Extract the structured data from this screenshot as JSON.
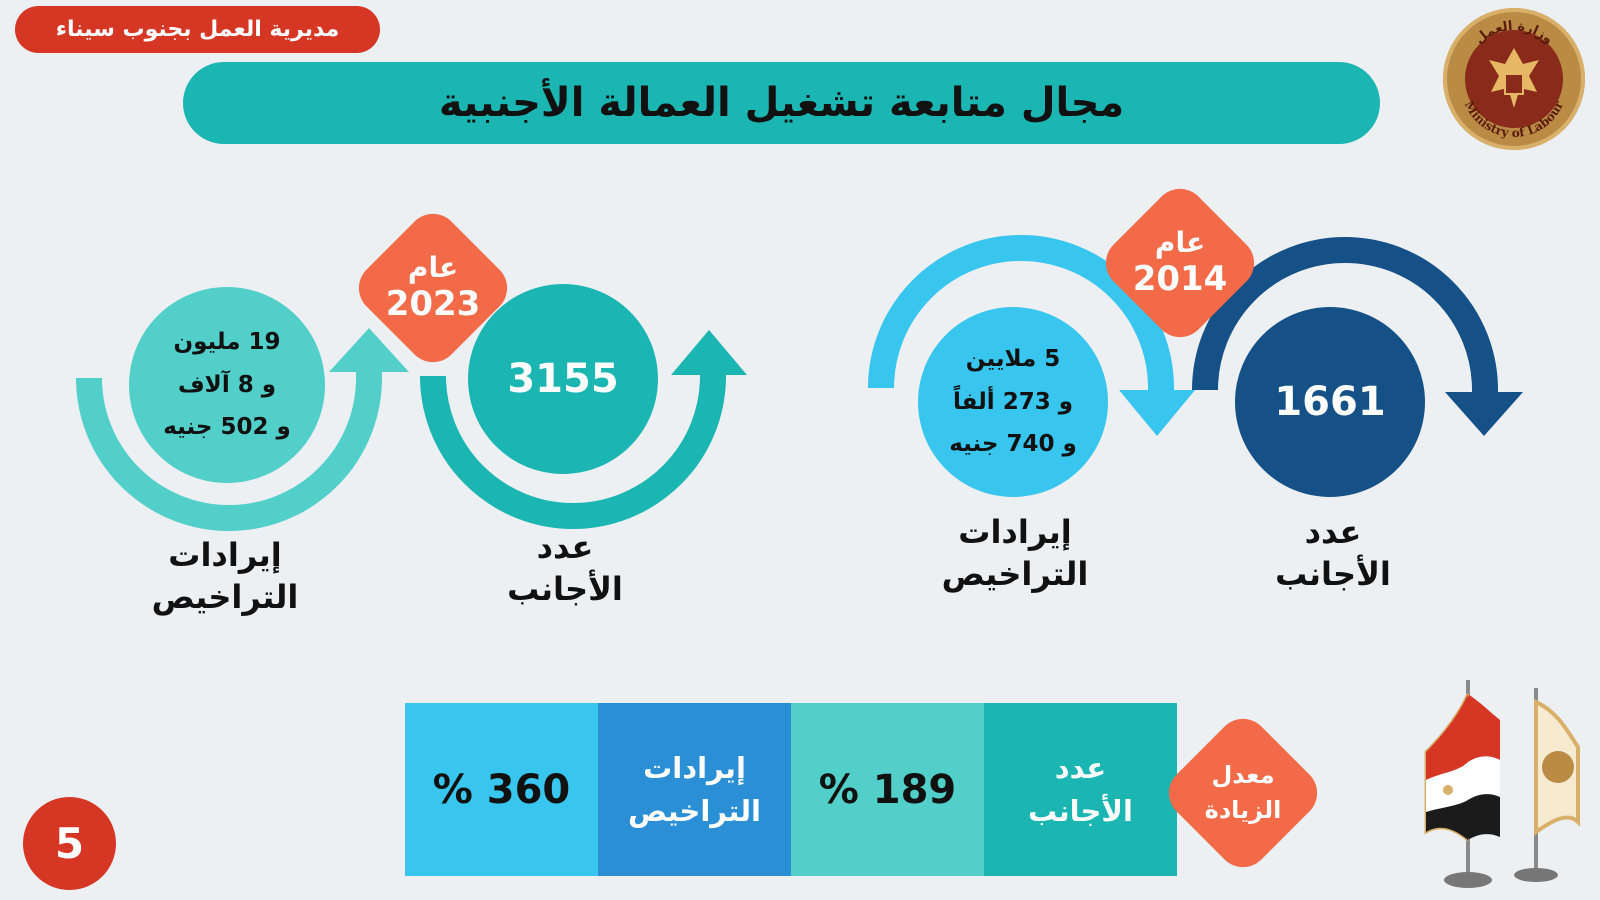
{
  "header": {
    "directorate": "مديرية العمل بجنوب سيناء",
    "title": "مجال متابعة تشغيل العمالة الأجنبية",
    "logo_text_ar": "وزارة العمل",
    "logo_text_en": "Ministry of Labour"
  },
  "year_2014": {
    "year_word": "عام",
    "year": "2014",
    "foreigners_count": "1661",
    "foreigners_label_1": "عدد",
    "foreigners_label_2": "الأجانب",
    "revenue_lines": [
      "5 ملايين",
      "و 273 ألفاً",
      "و  740 جنيه"
    ],
    "revenue_label_1": "إيرادات",
    "revenue_label_2": "التراخيص"
  },
  "year_2023": {
    "year_word": "عام",
    "year": "2023",
    "foreigners_count": "3155",
    "foreigners_label_1": "عدد",
    "foreigners_label_2": "الأجانب",
    "revenue_lines": [
      "19  مليون",
      "و 8 آلاف",
      "و 502 جنيه"
    ],
    "revenue_label_1": "إيرادات",
    "revenue_label_2": "التراخيص"
  },
  "increase": {
    "label_1": "معدل",
    "label_2": "الزيادة",
    "foreigners_label_1": "عدد",
    "foreigners_label_2": "الأجانب",
    "foreigners_rate": "189 %",
    "revenue_label_1": "إيرادات",
    "revenue_label_2": "التراخيص",
    "revenue_rate": "360 %"
  },
  "page_number": "5",
  "colors": {
    "teal": "#1bb5b2",
    "teal_light": "#52cfc9",
    "navy": "#155087",
    "sky": "#38c5ee",
    "blue": "#2b8fd6",
    "orange": "#f26a47",
    "red": "#d63624"
  },
  "icons": {
    "logo": "ministry-of-labour-seal",
    "flags": "egypt-and-ministry-flags"
  }
}
